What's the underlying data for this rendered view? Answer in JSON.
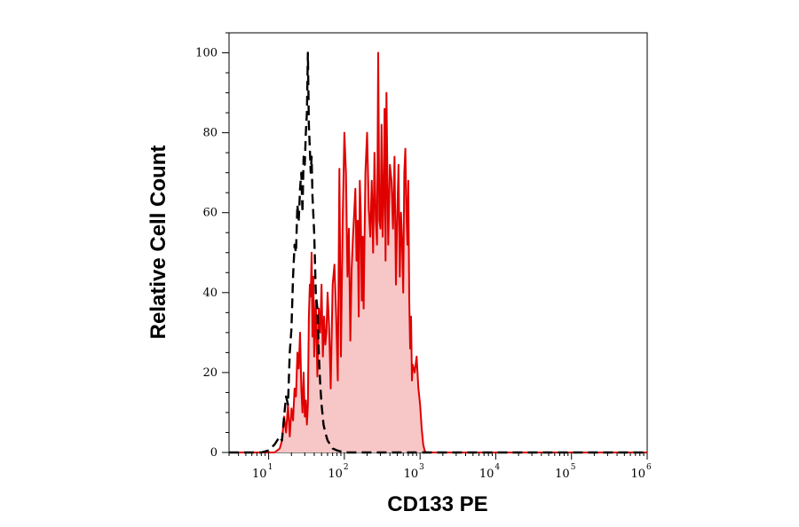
{
  "chart_data": {
    "type": "area",
    "xlabel": "CD133 PE",
    "ylabel": "Relative Cell Count",
    "xscale": "log",
    "xlim": [
      3,
      1000000
    ],
    "ylim": [
      0,
      105
    ],
    "grid": false,
    "legend": "none",
    "x_ticks": [
      {
        "base": "10",
        "exp": "1",
        "value": 10
      },
      {
        "base": "10",
        "exp": "2",
        "value": 100
      },
      {
        "base": "10",
        "exp": "3",
        "value": 1000
      },
      {
        "base": "10",
        "exp": "4",
        "value": 10000
      },
      {
        "base": "10",
        "exp": "5",
        "value": 100000
      },
      {
        "base": "10",
        "exp": "6",
        "value": 1000000
      }
    ],
    "y_ticks": [
      "0",
      "20",
      "40",
      "60",
      "80",
      "100"
    ],
    "series": [
      {
        "style": "dashed",
        "color": "#000000",
        "x": [
          3,
          8,
          10,
          12,
          14,
          15,
          16,
          17,
          18,
          19,
          20,
          21,
          22,
          23,
          24,
          25,
          26,
          27,
          28,
          29,
          30,
          31,
          32,
          33,
          34,
          35,
          36,
          37,
          38,
          40,
          42,
          44,
          46,
          48,
          50,
          53,
          56,
          60,
          65,
          70,
          80,
          100,
          150,
          1000,
          1000000
        ],
        "y": [
          0,
          0,
          0.5,
          2,
          4,
          3,
          9,
          14,
          12,
          25,
          31,
          44,
          52,
          50,
          62,
          58,
          66,
          70,
          60,
          74,
          72,
          80,
          85,
          100,
          82,
          76,
          70,
          74,
          64,
          55,
          40,
          36,
          25,
          17,
          12,
          7,
          5,
          3,
          2,
          1,
          0.5,
          0,
          0,
          0,
          0
        ]
      },
      {
        "style": "solid",
        "fill": "#f7c6c6",
        "color": "#e00000",
        "x": [
          3,
          12,
          14,
          15,
          16,
          17,
          18,
          19,
          20,
          21,
          22,
          23,
          24,
          25,
          26,
          27,
          28,
          29,
          30,
          31,
          32,
          33,
          34,
          35,
          36,
          37,
          38,
          39,
          40,
          42,
          44,
          46,
          48,
          50,
          52,
          54,
          56,
          58,
          60,
          63,
          66,
          70,
          74,
          78,
          82,
          86,
          90,
          95,
          100,
          105,
          110,
          115,
          120,
          125,
          130,
          135,
          140,
          145,
          150,
          155,
          160,
          165,
          170,
          175,
          180,
          190,
          200,
          210,
          220,
          230,
          240,
          250,
          260,
          270,
          280,
          290,
          300,
          310,
          320,
          330,
          340,
          350,
          360,
          380,
          400,
          420,
          440,
          460,
          480,
          500,
          520,
          540,
          560,
          580,
          600,
          620,
          640,
          660,
          680,
          700,
          720,
          740,
          760,
          780,
          800,
          850,
          900,
          950,
          1000,
          1050,
          1100,
          1150,
          1200,
          1300,
          2000,
          1000000
        ],
        "y": [
          0,
          0,
          1,
          3,
          9,
          5,
          12,
          4,
          11,
          8,
          16,
          14,
          25,
          21,
          30,
          16,
          10,
          20,
          9,
          13,
          7,
          12,
          34,
          42,
          39,
          50,
          29,
          44,
          24,
          38,
          19,
          36,
          30,
          42,
          24,
          34,
          27,
          30,
          40,
          31,
          16,
          42,
          47,
          34,
          18,
          71,
          24,
          58,
          80,
          70,
          44,
          56,
          28,
          46,
          54,
          60,
          66,
          48,
          58,
          34,
          68,
          60,
          38,
          54,
          36,
          70,
          80,
          61,
          54,
          68,
          50,
          75,
          58,
          52,
          100,
          58,
          56,
          82,
          54,
          64,
          86,
          48,
          90,
          52,
          72,
          68,
          56,
          74,
          42,
          60,
          72,
          44,
          60,
          52,
          40,
          70,
          76,
          60,
          52,
          68,
          38,
          26,
          34,
          18,
          22,
          20,
          24,
          16,
          12,
          6,
          2,
          0.5,
          0,
          0,
          0,
          0
        ]
      }
    ]
  }
}
